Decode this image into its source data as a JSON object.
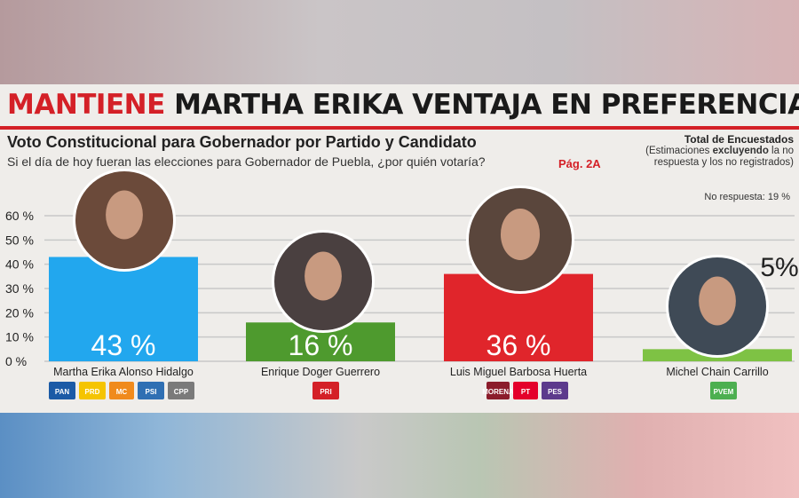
{
  "headline": {
    "red": "MANTIENE",
    "black": "MARTHA ERIKA VENTAJA EN PREFERENCIAS"
  },
  "subtitle": "Voto Constitucional para Gobernador por Partido y Candidato",
  "question": "Si el día de hoy fueran las elecciones para Gobernador de Puebla, ¿por quién votaría?",
  "page_ref": "Pág. 2A",
  "total": {
    "title": "Total de Encuestados",
    "note_before": "(Estimaciones ",
    "note_bold": "excluyendo",
    "note_after": " la no respuesta y los no registrados)"
  },
  "no_response": "No respuesta: 19 %",
  "chart_data": {
    "type": "bar",
    "title": "Voto Constitucional para Gobernador por Partido y Candidato",
    "categories": [
      "Martha Erika Alonso Hidalgo",
      "Enrique Doger Guerrero",
      "Luis Miguel Barbosa Huerta",
      "Michel Chain Carrillo"
    ],
    "values": [
      43,
      16,
      36,
      5
    ],
    "value_labels": [
      "43 %",
      "16 %",
      "36 %",
      "5%"
    ],
    "colors": [
      "#22a7ee",
      "#4e9a2e",
      "#e0252b",
      "#7ec244"
    ],
    "ylim": [
      0,
      60
    ],
    "yticks": [
      0,
      10,
      20,
      30,
      40,
      50,
      60
    ],
    "ytick_labels": [
      "0 %",
      "10 %",
      "20 %",
      "30 %",
      "40 %",
      "50 %",
      "60 %"
    ],
    "grid": true,
    "xlabel": "",
    "ylabel": ""
  },
  "party_logos": [
    {
      "candidate": "Martha Erika Alonso Hidalgo",
      "logos": [
        "PAN",
        "PRD",
        "MC",
        "PSI",
        "CPP"
      ]
    },
    {
      "candidate": "Enrique Doger Guerrero",
      "logos": [
        "PRI"
      ]
    },
    {
      "candidate": "Luis Miguel Barbosa Huerta",
      "logos": [
        "MORENA",
        "PT",
        "PES"
      ]
    },
    {
      "candidate": "Michel Chain Carrillo",
      "logos": [
        "PVEM"
      ]
    }
  ]
}
